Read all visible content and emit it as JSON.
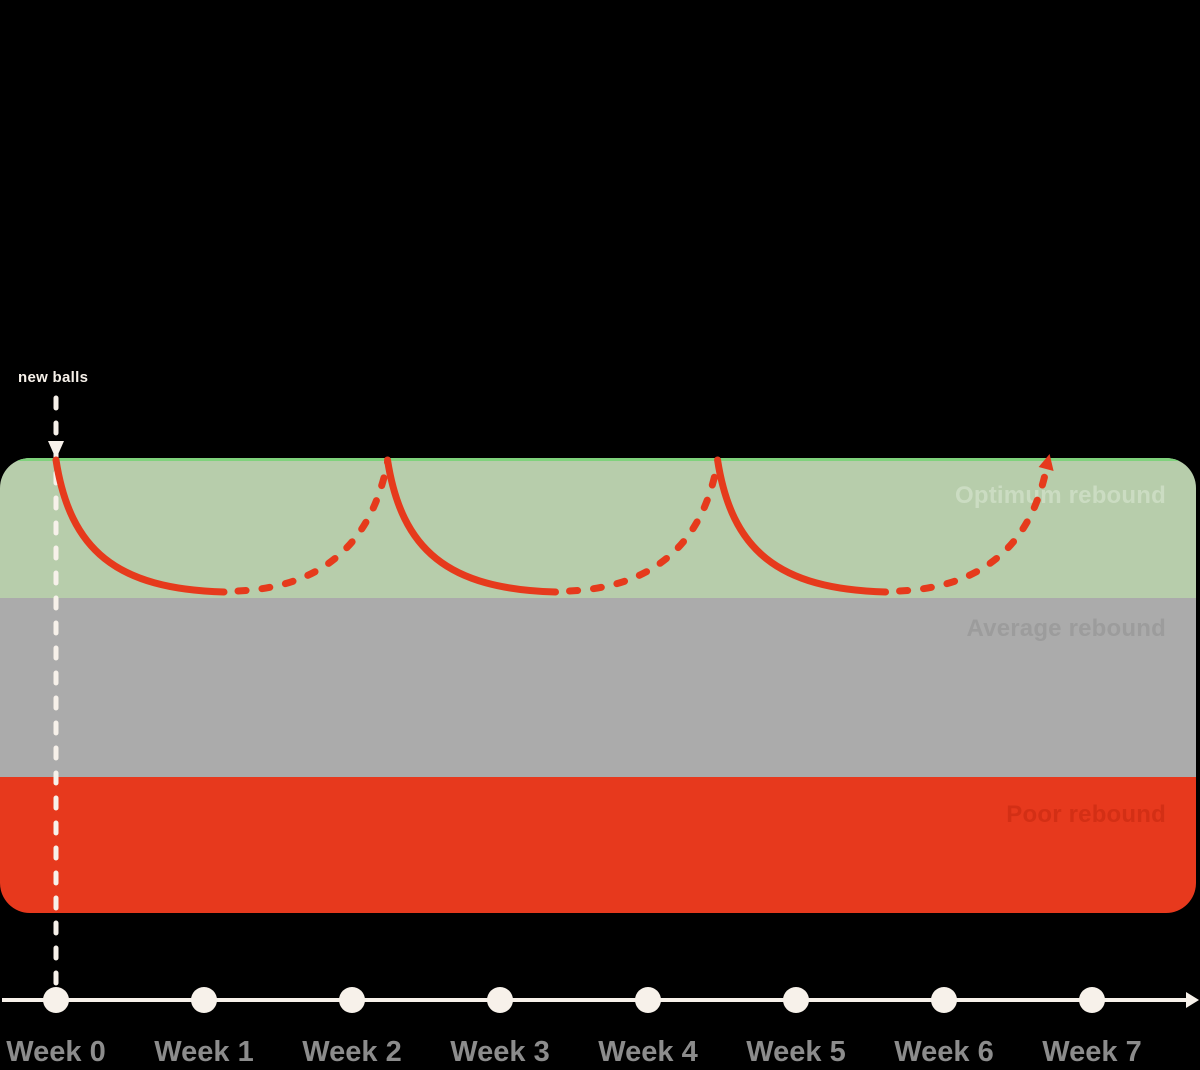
{
  "colors": {
    "background": "#000000",
    "optimum_band": "#b7cdab",
    "average_band": "#ababab",
    "poor_band": "#e7391d",
    "optimum_label": "#cbdcc2",
    "average_label": "#9c9c9c",
    "poor_label": "#d32f15",
    "optimum_topline": "#7fd27c",
    "curve": "#e63a1c",
    "axis": "#f7f1ea",
    "tick_label": "#8c8c8c",
    "annotation_text": "#f7f1ea"
  },
  "annotation": {
    "label": "new balls"
  },
  "bands": [
    {
      "label": "Optimum rebound"
    },
    {
      "label": "Average rebound"
    },
    {
      "label": "Poor rebound"
    }
  ],
  "axis": {
    "weeks": [
      "Week 0",
      "Week 1",
      "Week 2",
      "Week 3",
      "Week 4",
      "Week 5",
      "Week 6",
      "Week 7"
    ]
  },
  "chart_data": {
    "type": "line",
    "title": "",
    "xlabel": "",
    "ylabel": "",
    "grid": false,
    "legend": "none",
    "x_axis": {
      "tick_labels": [
        "Week 0",
        "Week 1",
        "Week 2",
        "Week 3",
        "Week 4",
        "Week 5",
        "Week 6",
        "Week 7"
      ],
      "range_weeks": [
        0,
        7.7
      ],
      "arrow_at_end": true,
      "dot_markers_at_each_week": true
    },
    "y_bands": [
      {
        "name": "Optimum rebound",
        "approx_range_pct": [
          70,
          100
        ],
        "color": "#b7cdab"
      },
      {
        "name": "Average rebound",
        "approx_range_pct": [
          35,
          70
        ],
        "color": "#ababab"
      },
      {
        "name": "Poor rebound",
        "approx_range_pct": [
          0,
          35
        ],
        "color": "#e7391d"
      }
    ],
    "series_description": "Ball rebound after getting new balls: solid red curve = rebound decaying from 100% (top of Optimum band) down to the Optimum/Average boundary in about 1.1 weeks; dashed red curve = projected segment rising back to 100% when balls are replaced (~every 2.2 weeks).",
    "cycles": [
      {
        "new_balls_week": 0.0,
        "decays_to_week": 1.14,
        "dashed_rise_to_week": 2.24,
        "peak_pct": 100,
        "trough_pct": 70
      },
      {
        "new_balls_week": 2.24,
        "decays_to_week": 3.38,
        "dashed_rise_to_week": 4.47,
        "peak_pct": 100,
        "trough_pct": 70
      },
      {
        "new_balls_week": 4.47,
        "decays_to_week": 5.61,
        "dashed_rise_to_week": 6.7,
        "peak_pct": 100,
        "trough_pct": 70,
        "arrow_at_end": true
      }
    ],
    "annotations": [
      {
        "text": "new balls",
        "week": 0,
        "style": "white dashed vertical line with downward arrowhead at top of Optimum band"
      }
    ]
  }
}
